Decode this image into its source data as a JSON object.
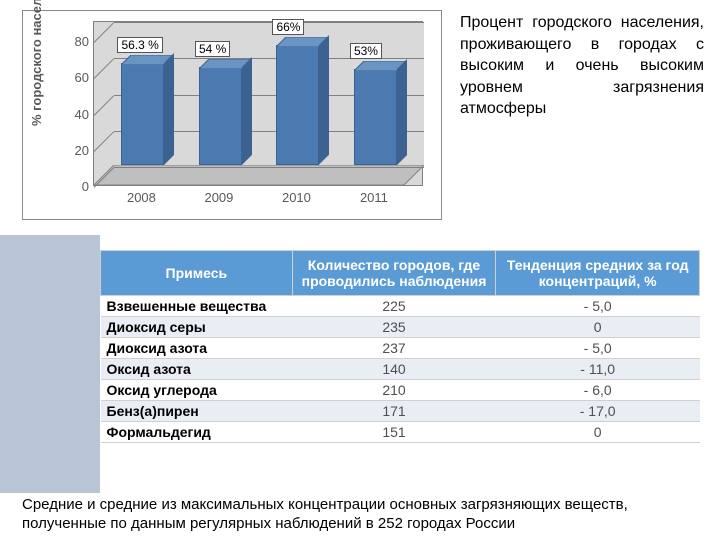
{
  "chart": {
    "type": "bar3d",
    "ylabel": "% городского населения",
    "ylim": [
      0,
      80
    ],
    "ytick_step": 20,
    "yticks": [
      0,
      20,
      40,
      60,
      80
    ],
    "categories": [
      "2008",
      "2009",
      "2010",
      "2011"
    ],
    "values": [
      56.3,
      54,
      66,
      53
    ],
    "value_labels": [
      "56.3 %",
      "54 %",
      "66%",
      "53%"
    ],
    "bar_color": "#4a7ab0",
    "bar_color_top": "#6a95c2",
    "bar_color_side": "#3b6290",
    "background_color": "#d9d9d9",
    "gridline_color": "#808080",
    "axis_text_color": "#595959",
    "value_box_bg": "#ffffff",
    "value_box_border": "#555555"
  },
  "description": "Процент городского населения, проживающего в городах с высоким и очень высоким уровнем загрязнения атмосферы",
  "table": {
    "header_bg": "#5b9bd5",
    "header_color": "#ffffff",
    "row_alt_bg": "#e9edf4",
    "columns": [
      "Примесь",
      "Количество городов, где проводились наблюдения",
      "Тенденция средних за год концентраций, %"
    ],
    "rows": [
      [
        "Взвешенные вещества",
        "225",
        "- 5,0"
      ],
      [
        "Диоксид серы",
        "235",
        "0"
      ],
      [
        "Диоксид азота",
        "237",
        "- 5,0"
      ],
      [
        "Оксид азота",
        "140",
        "- 11,0"
      ],
      [
        "Оксид углерода",
        "210",
        "- 6,0"
      ],
      [
        "Бенз(а)пирен",
        "171",
        "- 17,0"
      ],
      [
        "Формальдегид",
        "151",
        "0"
      ]
    ]
  },
  "caption": "Средние и средние из максимальных концентрации основных загрязняющих веществ, полученные по данным регулярных наблюдений в 252 городах России"
}
